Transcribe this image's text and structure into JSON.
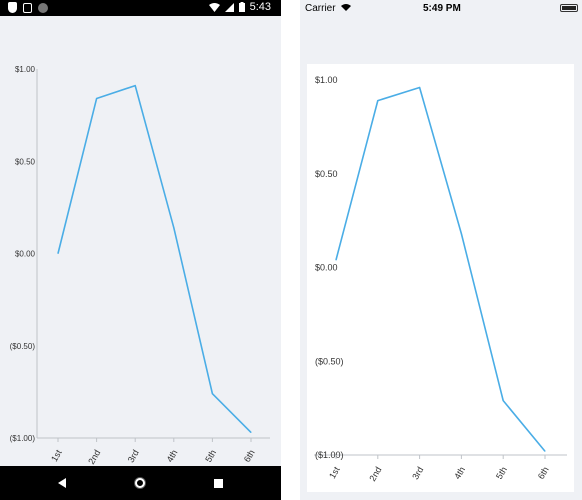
{
  "android": {
    "status_time": "5:43",
    "icons": [
      "shield-icon",
      "sd-card-icon",
      "circle-icon",
      "wifi-icon",
      "signal-icon",
      "battery-icon"
    ],
    "nav": [
      "back-icon",
      "home-icon",
      "recent-apps-icon"
    ]
  },
  "ios": {
    "carrier": "Carrier",
    "status_time": "5:49 PM",
    "icons": [
      "wifi-icon",
      "battery-icon"
    ]
  },
  "chart_data": [
    {
      "type": "line",
      "categories": [
        "1st",
        "2nd",
        "3rd",
        "4th",
        "5th",
        "6th"
      ],
      "series": [
        {
          "values": [
            0.0,
            0.84,
            0.91,
            0.14,
            -0.76,
            -0.97
          ]
        }
      ],
      "ylim": [
        -1,
        1
      ],
      "yticks": [
        "($1.00)",
        "($0.50)",
        "$0.00",
        "$0.50",
        "$1.00"
      ],
      "line_color": "#4aade6"
    },
    {
      "type": "line",
      "categories": [
        "1st",
        "2nd",
        "3rd",
        "4th",
        "5th",
        "6th"
      ],
      "series": [
        {
          "values": [
            0.04,
            0.89,
            0.96,
            0.18,
            -0.71,
            -0.98
          ]
        }
      ],
      "ylim": [
        -1,
        1
      ],
      "yticks": [
        "($1.00)",
        "($0.50)",
        "$0.00",
        "$0.50",
        "$1.00"
      ],
      "line_color": "#4aade6"
    }
  ]
}
